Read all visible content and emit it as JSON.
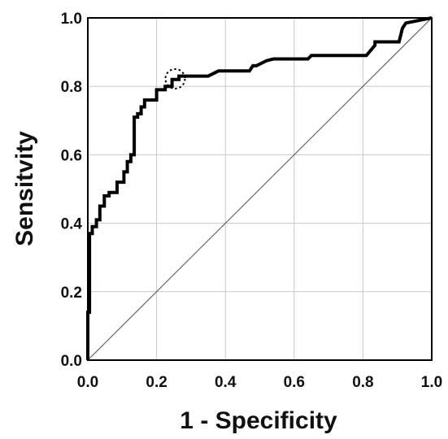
{
  "chart_data": {
    "type": "line",
    "title": "",
    "xlabel": "1 - Specificity",
    "ylabel": "Sensitvity",
    "xlim": [
      0,
      1
    ],
    "ylim": [
      0,
      1
    ],
    "xticks": [
      0.0,
      0.2,
      0.4,
      0.6,
      0.8,
      1.0
    ],
    "yticks": [
      0.0,
      0.2,
      0.4,
      0.6,
      0.8,
      1.0
    ],
    "xtick_labels": [
      "0.0",
      "0.2",
      "0.4",
      "0.6",
      "0.8",
      "1.0"
    ],
    "ytick_labels": [
      "0.0",
      "0.2",
      "0.4",
      "0.6",
      "0.8",
      "1.0"
    ],
    "grid": true,
    "series": [
      {
        "name": "",
        "color": "#000000",
        "x": [
          0.0,
          0.0,
          0.005,
          0.005,
          0.013,
          0.013,
          0.025,
          0.025,
          0.035,
          0.035,
          0.048,
          0.048,
          0.062,
          0.062,
          0.085,
          0.085,
          0.105,
          0.105,
          0.115,
          0.115,
          0.125,
          0.125,
          0.135,
          0.135,
          0.145,
          0.145,
          0.155,
          0.155,
          0.165,
          0.165,
          0.2,
          0.2,
          0.225,
          0.225,
          0.245,
          0.245,
          0.265,
          0.265,
          0.28,
          0.28,
          0.35,
          0.38,
          0.47,
          0.48,
          0.49,
          0.52,
          0.54,
          0.64,
          0.65,
          0.81,
          0.835,
          0.835,
          0.905,
          0.915,
          0.925,
          0.975,
          1.0
        ],
        "y": [
          0.0,
          0.14,
          0.14,
          0.37,
          0.37,
          0.39,
          0.39,
          0.41,
          0.41,
          0.45,
          0.45,
          0.48,
          0.48,
          0.49,
          0.49,
          0.52,
          0.52,
          0.55,
          0.55,
          0.58,
          0.58,
          0.6,
          0.6,
          0.71,
          0.71,
          0.72,
          0.72,
          0.74,
          0.74,
          0.76,
          0.76,
          0.79,
          0.79,
          0.8,
          0.8,
          0.82,
          0.82,
          0.83,
          0.83,
          0.83,
          0.83,
          0.845,
          0.845,
          0.86,
          0.86,
          0.875,
          0.88,
          0.88,
          0.89,
          0.89,
          0.92,
          0.93,
          0.93,
          0.97,
          0.985,
          0.995,
          1.0
        ]
      }
    ],
    "reference_line": {
      "type": "diagonal",
      "visible": true,
      "color": "#666666"
    },
    "annotations": [
      {
        "type": "dotted-circle",
        "x": 0.254,
        "y": 0.822,
        "color": "#000000"
      }
    ]
  }
}
